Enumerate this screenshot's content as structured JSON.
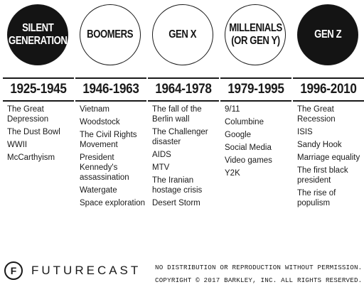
{
  "generations": [
    {
      "name": "SILENT\nGENERATION",
      "style": "dark",
      "years": "1925-1945",
      "events": [
        "The Great Depression",
        "The Dust Bowl",
        "WWII",
        "McCarthyism"
      ]
    },
    {
      "name": "BOOMERS",
      "style": "light",
      "years": "1946-1963",
      "events": [
        "Vietnam",
        "Woodstock",
        "The Civil Rights Movement",
        "President Kennedy's assassination",
        "Watergate",
        "Space exploration"
      ]
    },
    {
      "name": "GEN X",
      "style": "light",
      "years": "1964-1978",
      "events": [
        "The fall of the Berlin wall",
        "The Challenger disaster",
        "AIDS",
        "MTV",
        "The Iranian hostage crisis",
        "Desert Storm"
      ]
    },
    {
      "name": "MILLENIALS\n(OR GEN Y)",
      "style": "light",
      "years": "1979-1995",
      "events": [
        "9/11",
        "Columbine",
        "Google",
        "Social Media",
        "Video games",
        "Y2K"
      ]
    },
    {
      "name": "GEN Z",
      "style": "dark",
      "years": "1996-2010",
      "events": [
        "The Great Recession",
        "ISIS",
        "Sandy Hook",
        "Marriage equality",
        "The first black president",
        "The rise of populism"
      ]
    }
  ],
  "footer": {
    "logo_letter": "F",
    "logo_text": "FUTURECAST",
    "notice": "NO DISTRIBUTION OR REPRODUCTION WITHOUT PERMISSION.",
    "copyright": "COPYRIGHT © 2017 BARKLEY, INC. ALL RIGHTS RESERVED."
  },
  "colors": {
    "ink": "#1a1a1a",
    "dark_fill": "#141414",
    "background": "#ffffff"
  },
  "icons": {
    "logo": "futurecast-logo-icon"
  }
}
